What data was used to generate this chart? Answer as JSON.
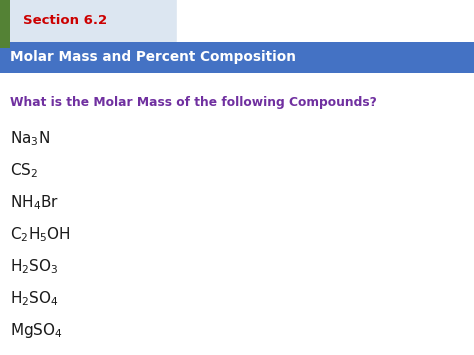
{
  "section_label": "Section 6.2",
  "section_text_color": "#cc0000",
  "header_bg_color": "#4472c4",
  "header_text": "Molar Mass and Percent Composition",
  "header_text_color": "#ffffff",
  "question_text": "What is the Molar Mass of the following Compounds?",
  "question_text_color": "#7030a0",
  "body_bg_color": "#ffffff",
  "tab_bg_color": "#dce6f1",
  "green_bar_color": "#548235",
  "compounds_mathtext": [
    "$\\mathregular{Na_3N}$",
    "$\\mathregular{CS_2}$",
    "$\\mathregular{NH_4Br}$",
    "$\\mathregular{C_2H_5OH}$",
    "$\\mathregular{H_2SO_3}$",
    "$\\mathregular{H_2SO_4}$",
    "$\\mathregular{MgSO_4}$"
  ],
  "compound_text_color": "#1a1a1a",
  "figsize": [
    4.74,
    3.55
  ],
  "dpi": 100
}
